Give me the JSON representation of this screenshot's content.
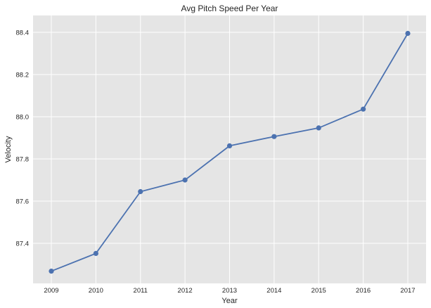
{
  "chart_data": {
    "type": "line",
    "title": "Avg Pitch Speed Per Year",
    "xlabel": "Year",
    "ylabel": "Velocity",
    "x": [
      "2009",
      "2010",
      "2011",
      "2012",
      "2013",
      "2014",
      "2015",
      "2016",
      "2017"
    ],
    "series": [
      {
        "values": [
          87.268,
          87.352,
          87.645,
          87.7,
          87.862,
          87.906,
          87.947,
          88.036,
          88.395
        ],
        "color": "#4c72b0",
        "marker": "circle"
      }
    ],
    "yticks": [
      87.4,
      87.6,
      87.8,
      88.0,
      88.2,
      88.4
    ],
    "ytick_labels": [
      "87.4",
      "87.6",
      "87.8",
      "88.0",
      "88.2",
      "88.4"
    ],
    "ylim": [
      87.21,
      88.48
    ],
    "grid": true,
    "background": "#e5e5e5",
    "grid_color": "#ffffff"
  }
}
